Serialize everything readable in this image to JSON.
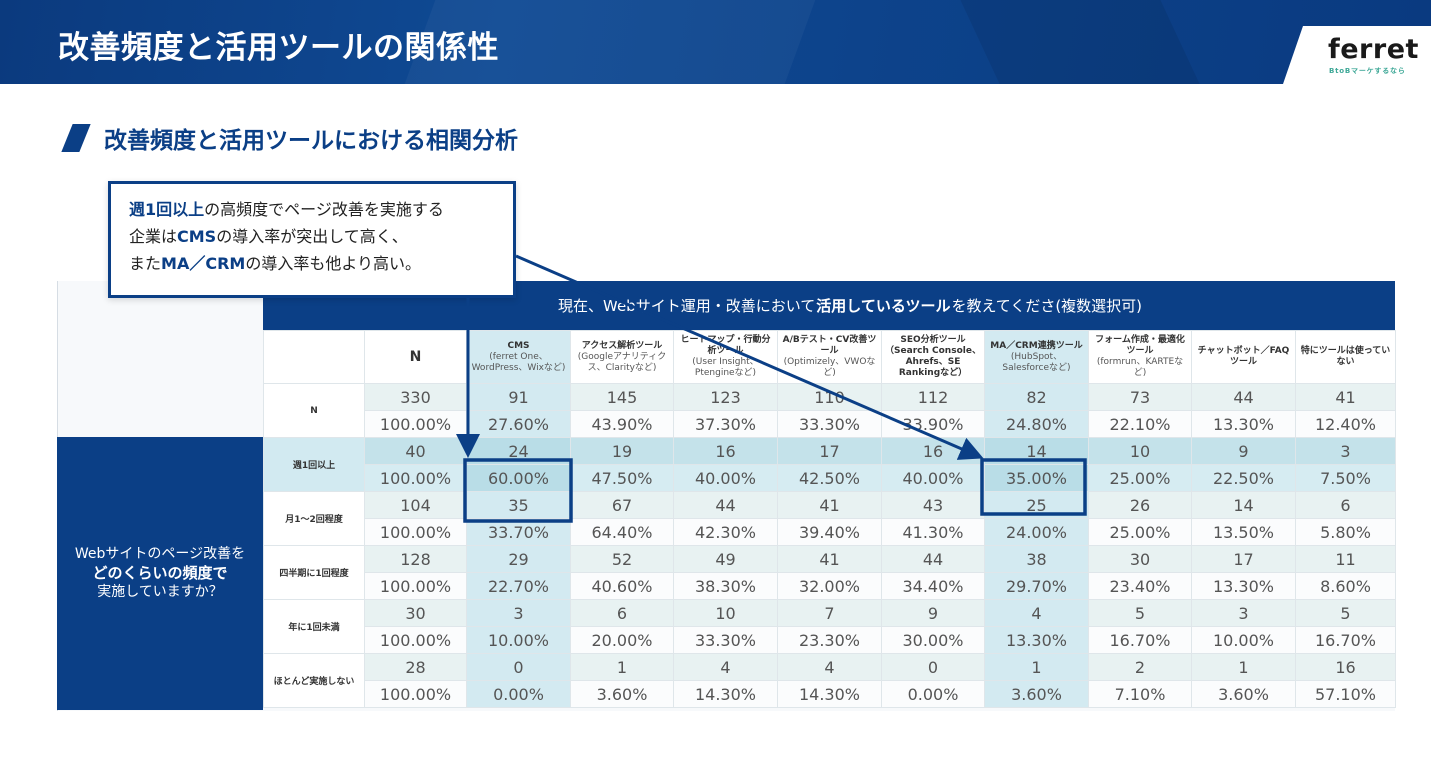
{
  "header": {
    "title": "改善頻度と活用ツールの関係性",
    "logo_word": "ferret",
    "logo_tagline": "BtoBマーケするなら"
  },
  "section": {
    "title": "改善頻度と活用ツールにおける相関分析"
  },
  "callout": {
    "line1_bold": "週1回以上",
    "line1_rest": "の高頻度でページ改善を実施する",
    "line2_a": "企業は",
    "line2_bold": "CMS",
    "line2_rest": "の導入率が突出して高く、",
    "line3_a": "また",
    "line3_bold": "MA／CRM",
    "line3_rest": "の導入率も他より高い。"
  },
  "question_banner": {
    "prefix": "現在、Webサイト運用・改善において",
    "bold": "活用しているツール",
    "suffix": "を教えてくださ(複数選択可)"
  },
  "row_question": {
    "line1": "Webサイトのページ改善を",
    "line2": "どのくらいの頻度で",
    "line3": "実施していますか？"
  },
  "table": {
    "columns": [
      {
        "title": "N",
        "sub": ""
      },
      {
        "title": "CMS",
        "sub": "(ferret One、WordPress、Wixなど)"
      },
      {
        "title": "アクセス解析ツール",
        "sub": "(Googleアナリティクス、Clarityなど)"
      },
      {
        "title": "ヒートマップ・行動分析ツール",
        "sub": "(User Insight、Ptengineなど)"
      },
      {
        "title": "A/Bテスト・CV改善ツール",
        "sub": "(Optimizely、VWOなど)"
      },
      {
        "title": "SEO分析ツール（Search Console、Ahrefs、SE Rankingなど）",
        "sub": ""
      },
      {
        "title": "MA／CRM連携ツール",
        "sub": "(HubSpot、Salesforceなど)"
      },
      {
        "title": "フォーム作成・最適化ツール",
        "sub": "(formrun、KARTEなど)"
      },
      {
        "title": "チャットボット／FAQツール",
        "sub": ""
      },
      {
        "title": "特にツールは使っていない",
        "sub": ""
      }
    ],
    "rows": [
      {
        "label": "N",
        "counts": [
          "330",
          "91",
          "145",
          "123",
          "110",
          "112",
          "82",
          "73",
          "44",
          "41"
        ],
        "pcts": [
          "100.00%",
          "27.60%",
          "43.90%",
          "37.30%",
          "33.30%",
          "33.90%",
          "24.80%",
          "22.10%",
          "13.30%",
          "12.40%"
        ]
      },
      {
        "label": "週1回以上",
        "counts": [
          "40",
          "24",
          "19",
          "16",
          "17",
          "16",
          "14",
          "10",
          "9",
          "3"
        ],
        "pcts": [
          "100.00%",
          "60.00%",
          "47.50%",
          "40.00%",
          "42.50%",
          "40.00%",
          "35.00%",
          "25.00%",
          "22.50%",
          "7.50%"
        ]
      },
      {
        "label": "月1～2回程度",
        "counts": [
          "104",
          "35",
          "67",
          "44",
          "41",
          "43",
          "25",
          "26",
          "14",
          "6"
        ],
        "pcts": [
          "100.00%",
          "33.70%",
          "64.40%",
          "42.30%",
          "39.40%",
          "41.30%",
          "24.00%",
          "25.00%",
          "13.50%",
          "5.80%"
        ]
      },
      {
        "label": "四半期に1回程度",
        "counts": [
          "128",
          "29",
          "52",
          "49",
          "41",
          "44",
          "38",
          "30",
          "17",
          "11"
        ],
        "pcts": [
          "100.00%",
          "22.70%",
          "40.60%",
          "38.30%",
          "32.00%",
          "34.40%",
          "29.70%",
          "23.40%",
          "13.30%",
          "8.60%"
        ]
      },
      {
        "label": "年に1回未満",
        "counts": [
          "30",
          "3",
          "6",
          "10",
          "7",
          "9",
          "4",
          "5",
          "3",
          "5"
        ],
        "pcts": [
          "100.00%",
          "10.00%",
          "20.00%",
          "33.30%",
          "23.30%",
          "30.00%",
          "13.30%",
          "16.70%",
          "10.00%",
          "16.70%"
        ]
      },
      {
        "label": "ほとんど実施しない",
        "counts": [
          "28",
          "0",
          "1",
          "4",
          "4",
          "0",
          "1",
          "2",
          "1",
          "16"
        ],
        "pcts": [
          "100.00%",
          "0.00%",
          "3.60%",
          "14.30%",
          "14.30%",
          "0.00%",
          "3.60%",
          "7.10%",
          "3.60%",
          "57.10%"
        ]
      }
    ]
  },
  "colors": {
    "brand_navy": "#0b3f86",
    "accent_column": "#d3eaf1",
    "highlight_row": "#c4e2ea",
    "logo_tag_green": "#3ea897"
  }
}
